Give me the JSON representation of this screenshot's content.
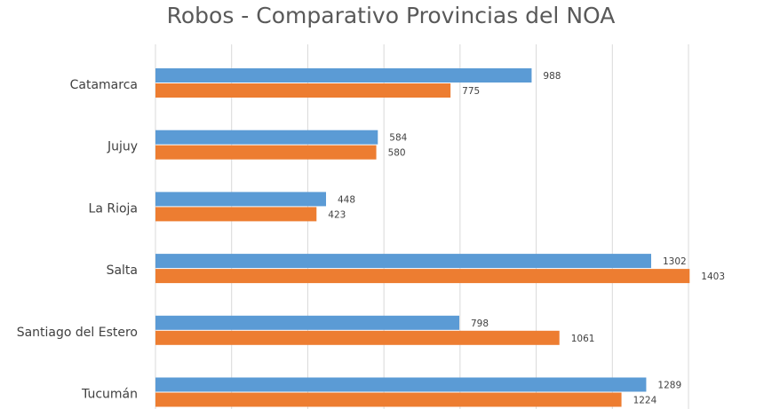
{
  "chart_data": {
    "type": "bar",
    "orientation": "horizontal",
    "title": "Robos - Comparativo Provincias del NOA",
    "categories": [
      "Catamarca",
      "Jujuy",
      "La Rioja",
      "Salta",
      "Santiago del Estero",
      "Tucumán"
    ],
    "series": [
      {
        "values": [
          988,
          584,
          448,
          1302,
          798,
          1289
        ],
        "color": "#5b9bd5"
      },
      {
        "values": [
          775,
          580,
          423,
          1403,
          1061,
          1224
        ],
        "color": "#ed7d31"
      }
    ],
    "xlim": [
      0,
      1400
    ],
    "grid": true,
    "data_labels": true
  }
}
